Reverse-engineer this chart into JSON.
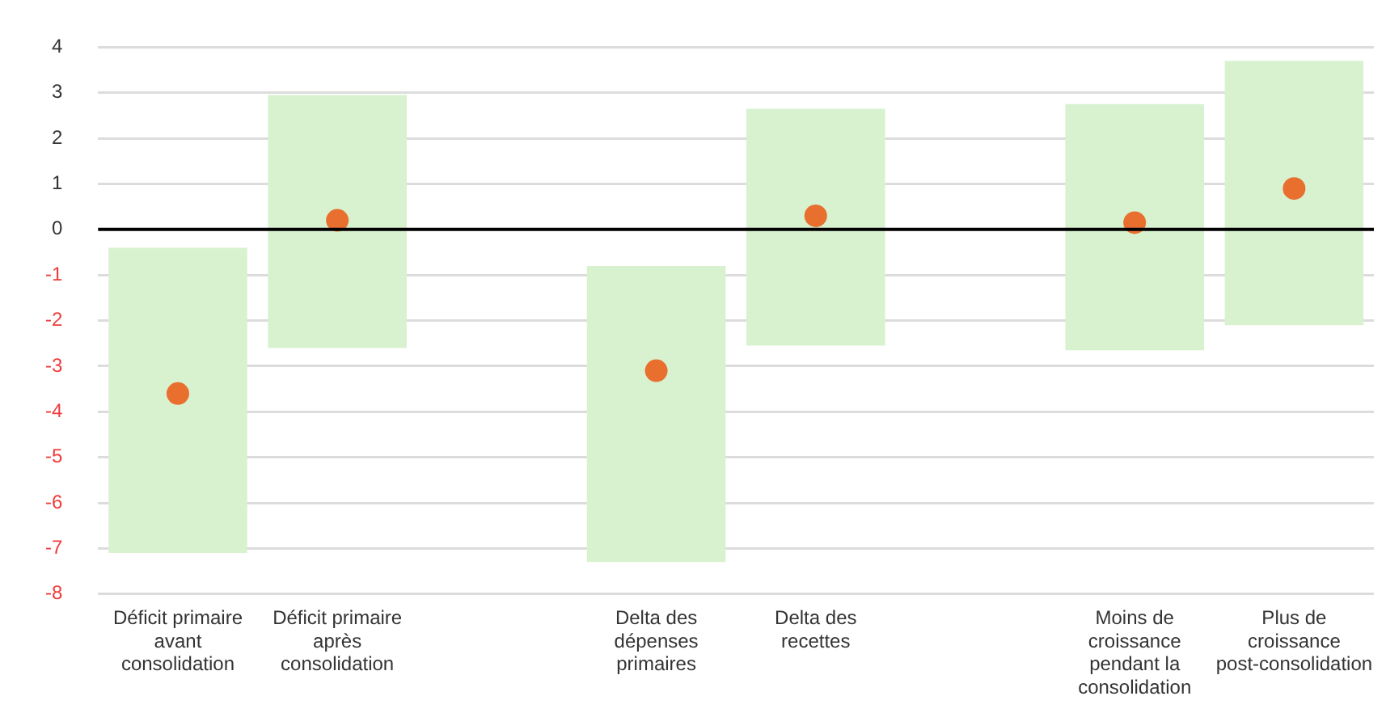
{
  "chart_data": {
    "type": "bar",
    "categories": [
      "Déficit primaire avant consolidation",
      "Déficit primaire après consolidation",
      null,
      "Delta des dépenses primaires",
      "Delta des recettes",
      null,
      "Moins de croissance pendant la consolidation",
      "Plus de croissance post-consolidation"
    ],
    "series": [
      {
        "color": "#d8f2d0",
        "values": [
          6.7,
          5.55,
          null,
          6.5,
          5.2,
          null,
          5.4,
          5.8
        ],
        "base": [
          -7.1,
          -2.6,
          null,
          -7.3,
          -2.55,
          null,
          -2.65,
          -2.1
        ]
      },
      {
        "type": "scatter",
        "color": "#e96f2f",
        "values": [
          -3.6,
          0.2,
          null,
          -3.1,
          0.3,
          null,
          0.15,
          0.9
        ]
      }
    ],
    "ylim": [
      -8,
      4
    ],
    "yticks": [
      -8,
      -7,
      -6,
      -5,
      -4,
      -3,
      -2,
      -1,
      0,
      1,
      2,
      3,
      4
    ],
    "grid": "y",
    "marker": "circle",
    "ref_lines": [
      {
        "axis": "y",
        "value": 0,
        "color": "#000000"
      }
    ]
  }
}
